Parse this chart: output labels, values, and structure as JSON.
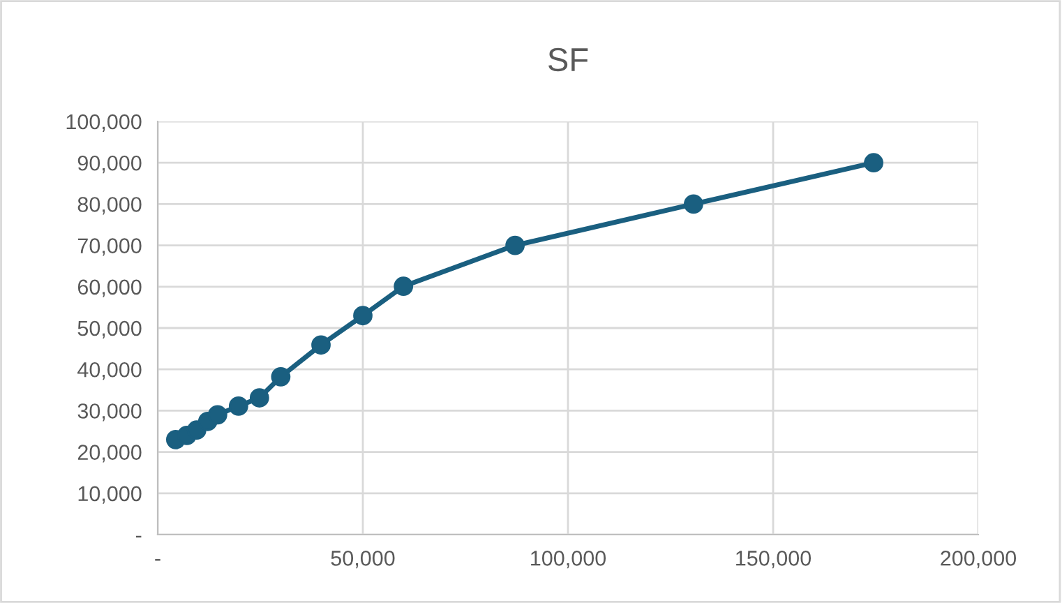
{
  "chart_data": {
    "type": "line",
    "title": "SF",
    "marker": "circle",
    "grid": true,
    "legend": false,
    "xlim": [
      0,
      200000
    ],
    "xticks": [
      {
        "value": 0,
        "label": "-"
      },
      {
        "value": 50000,
        "label": "50,000"
      },
      {
        "value": 100000,
        "label": "100,000"
      },
      {
        "value": 150000,
        "label": "150,000"
      },
      {
        "value": 200000,
        "label": "200,000"
      }
    ],
    "ylim": [
      0,
      100000
    ],
    "yticks": [
      {
        "value": 0,
        "label": "-"
      },
      {
        "value": 10000,
        "label": "10,000"
      },
      {
        "value": 20000,
        "label": "20,000"
      },
      {
        "value": 30000,
        "label": "30,000"
      },
      {
        "value": 40000,
        "label": "40,000"
      },
      {
        "value": 50000,
        "label": "50,000"
      },
      {
        "value": 60000,
        "label": "60,000"
      },
      {
        "value": 70000,
        "label": "70,000"
      },
      {
        "value": 80000,
        "label": "80,000"
      },
      {
        "value": 90000,
        "label": "90,000"
      },
      {
        "value": 100000,
        "label": "100,000"
      }
    ],
    "series": [
      {
        "color": "#1a5f80",
        "x": [
          4400,
          7100,
          9500,
          12200,
          14600,
          19700,
          24800,
          30000,
          39800,
          50000,
          59900,
          87100,
          130600,
          174500
        ],
        "values": [
          23000,
          24000,
          25300,
          27400,
          29000,
          31100,
          33100,
          38200,
          45900,
          53000,
          60100,
          70000,
          80000,
          90000
        ]
      }
    ]
  }
}
